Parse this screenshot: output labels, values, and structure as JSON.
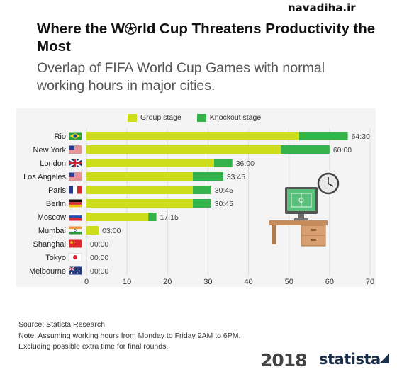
{
  "watermark": "navadiha.ir",
  "title_part1": "Where the W",
  "title_part2": "rld Cup Threatens Productivity the Most",
  "subtitle": "Overlap of FIFA World Cup Games with normal working hours in major cities.",
  "colors": {
    "group": "#cddc1b",
    "knockout": "#36b24a",
    "panel": "#f4f4f4"
  },
  "chart_data": {
    "type": "bar",
    "orientation": "horizontal",
    "stacked": true,
    "categories": [
      "Rio",
      "New York",
      "London",
      "Los Angeles",
      "Paris",
      "Berlin",
      "Moscow",
      "Mumbai",
      "Shanghai",
      "Tokyo",
      "Melbourne"
    ],
    "flags": [
      "brazil",
      "usa",
      "uk",
      "usa",
      "france",
      "germany",
      "russia",
      "india",
      "china",
      "japan",
      "australia"
    ],
    "series": [
      {
        "name": "Group stage",
        "values": [
          52.5,
          48,
          31.5,
          26.25,
          26.25,
          26.25,
          15.25,
          3,
          0,
          0,
          0
        ]
      },
      {
        "name": "Knockout stage",
        "values": [
          12,
          12,
          4.5,
          7.5,
          4.5,
          4.5,
          2,
          0,
          0,
          0,
          0
        ]
      }
    ],
    "data_labels": [
      "64:30",
      "60:00",
      "36:00",
      "33:45",
      "30:45",
      "30:45",
      "17:15",
      "03:00",
      "00:00",
      "00:00",
      "00:00"
    ],
    "xlim": [
      0,
      70
    ],
    "xticks": [
      0,
      10,
      20,
      30,
      40,
      50,
      60,
      70
    ],
    "legend_position": "top"
  },
  "footnote": {
    "source": "Source: Statista Research",
    "note1": "Note: Assuming working hours from Monday to Friday 9AM to 6PM.",
    "note2": "Excluding possible extra time for final rounds."
  },
  "logos": {
    "year": "2018",
    "brand": "statista"
  },
  "icons": [
    "soccer-ball-icon",
    "clock-icon",
    "desk-computer-illustration",
    "statista-logo-icon"
  ]
}
